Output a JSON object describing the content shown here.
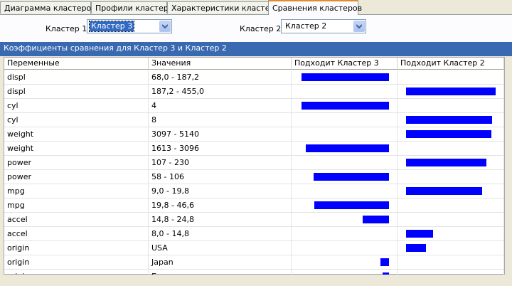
{
  "tabs": [
    {
      "label": "Диаграмма кластеров",
      "active": false
    },
    {
      "label": "Профили кластера",
      "active": false
    },
    {
      "label": "Характеристики кластера",
      "active": false
    },
    {
      "label": "Сравнения кластеров",
      "active": true
    }
  ],
  "filters": {
    "cluster1": {
      "label": "Кластер 1:",
      "value": "Кластер 3"
    },
    "cluster2": {
      "label": "Кластер 2:",
      "value": "Кластер 2"
    }
  },
  "grid": {
    "title": "Коэффициенты сравнения для Кластер 3 и Кластер 2",
    "columns": [
      "Переменные",
      "Значения",
      "Подходит Кластер 3",
      "Подходит Кластер 2"
    ],
    "bar_color": "#0000ff",
    "rows": [
      {
        "variable": "displ",
        "value": "68,0 - 187,2",
        "c3": 1.0,
        "c2": 0
      },
      {
        "variable": "displ",
        "value": "187,2 - 455,0",
        "c3": 0,
        "c2": 1.0
      },
      {
        "variable": "cyl",
        "value": "4",
        "c3": 1.0,
        "c2": 0
      },
      {
        "variable": "cyl",
        "value": "8",
        "c3": 0,
        "c2": 0.96
      },
      {
        "variable": "weight",
        "value": "3097 - 5140",
        "c3": 0,
        "c2": 0.95
      },
      {
        "variable": "weight",
        "value": "1613 - 3096",
        "c3": 0.95,
        "c2": 0
      },
      {
        "variable": "power",
        "value": "107 - 230",
        "c3": 0,
        "c2": 0.9
      },
      {
        "variable": "power",
        "value": "58 - 106",
        "c3": 0.86,
        "c2": 0
      },
      {
        "variable": "mpg",
        "value": "9,0 - 19,8",
        "c3": 0,
        "c2": 0.85
      },
      {
        "variable": "mpg",
        "value": "19,8 - 46,6",
        "c3": 0.85,
        "c2": 0
      },
      {
        "variable": "accel",
        "value": "14,8 - 24,8",
        "c3": 0.3,
        "c2": 0
      },
      {
        "variable": "accel",
        "value": "8,0 - 14,8",
        "c3": 0,
        "c2": 0.3
      },
      {
        "variable": "origin",
        "value": "USA",
        "c3": 0,
        "c2": 0.22
      },
      {
        "variable": "origin",
        "value": "Japan",
        "c3": 0.1,
        "c2": 0
      },
      {
        "variable": "origin",
        "value": "Europe",
        "c3": 0.07,
        "c2": 0
      }
    ]
  }
}
